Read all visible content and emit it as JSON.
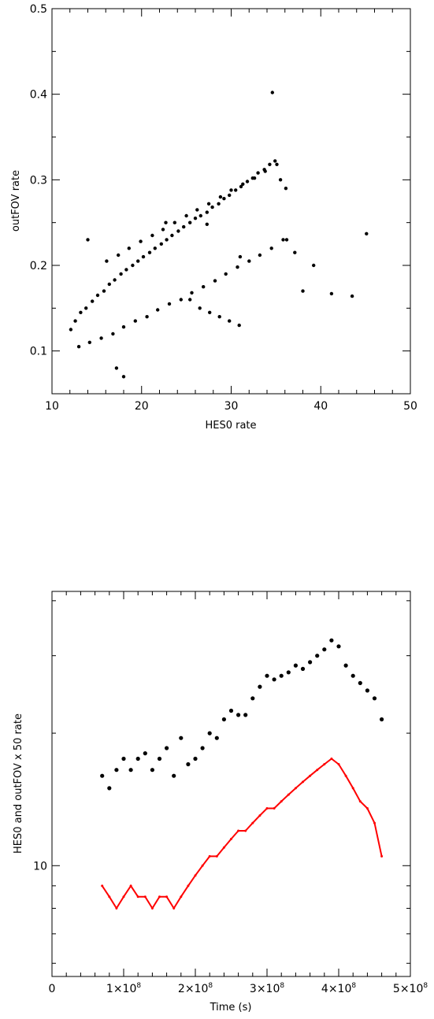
{
  "chart_data": [
    {
      "type": "scatter",
      "title": "",
      "xlabel": "HES0 rate",
      "ylabel": "outFOV rate",
      "xlim": [
        10,
        50
      ],
      "ylim": [
        0.05,
        0.5
      ],
      "x_ticks": [
        "10",
        "20",
        "30",
        "40",
        "50"
      ],
      "y_ticks": [
        "0.1",
        "0.2",
        "0.3",
        "0.4",
        "0.5"
      ],
      "series": [
        {
          "color": "#000000",
          "x": [
            12.1,
            12.6,
            13.2,
            13.8,
            14.5,
            15.1,
            15.8,
            16.4,
            17.0,
            17.7,
            18.3,
            19.0,
            19.6,
            20.2,
            20.9,
            21.5,
            22.2,
            22.8,
            23.4,
            24.1,
            24.7,
            25.4,
            26.0,
            26.6,
            27.3,
            27.9,
            28.6,
            29.2,
            29.8,
            30.5,
            31.1,
            31.8,
            32.4,
            33.0,
            33.7,
            34.3,
            34.9,
            35.5,
            36.1,
            13.0,
            14.2,
            15.5,
            16.8,
            18.0,
            19.3,
            20.6,
            21.8,
            23.1,
            24.4,
            25.6,
            26.9,
            28.2,
            29.4,
            30.7,
            32.0,
            33.2,
            34.5,
            35.8,
            16.1,
            17.4,
            18.6,
            19.9,
            21.2,
            22.4,
            23.7,
            25.0,
            26.2,
            27.5,
            28.8,
            30.0,
            31.3,
            32.6,
            33.8,
            35.1,
            25.4,
            26.5,
            27.6,
            28.7,
            29.8,
            30.9,
            36.2,
            37.1,
            38.0,
            39.2,
            41.2,
            43.5,
            45.1,
            18.0,
            17.2,
            34.6,
            14.0,
            22.7,
            27.3,
            31.0
          ],
          "y": [
            0.125,
            0.135,
            0.145,
            0.15,
            0.158,
            0.165,
            0.17,
            0.178,
            0.183,
            0.19,
            0.195,
            0.2,
            0.205,
            0.21,
            0.215,
            0.22,
            0.225,
            0.23,
            0.235,
            0.24,
            0.245,
            0.25,
            0.255,
            0.258,
            0.262,
            0.268,
            0.272,
            0.278,
            0.282,
            0.288,
            0.292,
            0.298,
            0.302,
            0.308,
            0.312,
            0.318,
            0.322,
            0.3,
            0.29,
            0.105,
            0.11,
            0.115,
            0.12,
            0.128,
            0.135,
            0.14,
            0.148,
            0.155,
            0.16,
            0.168,
            0.175,
            0.182,
            0.19,
            0.198,
            0.205,
            0.212,
            0.22,
            0.23,
            0.205,
            0.212,
            0.22,
            0.228,
            0.235,
            0.242,
            0.25,
            0.258,
            0.265,
            0.272,
            0.28,
            0.288,
            0.295,
            0.302,
            0.31,
            0.318,
            0.16,
            0.15,
            0.145,
            0.14,
            0.135,
            0.13,
            0.23,
            0.215,
            0.17,
            0.2,
            0.167,
            0.164,
            0.237,
            0.07,
            0.08,
            0.402,
            0.23,
            0.25,
            0.248,
            0.21
          ]
        }
      ]
    },
    {
      "type": "line",
      "title": "",
      "xlabel": "Time (s)",
      "ylabel": "HES0 and outFOV x 50 rate",
      "xlim": [
        0,
        500000000
      ],
      "ylim": [
        5.6,
        42
      ],
      "yscale": "log",
      "x_ticks": [
        {
          "mant": "0",
          "exp": ""
        },
        {
          "mant": "1×10",
          "exp": "8"
        },
        {
          "mant": "2×10",
          "exp": "8"
        },
        {
          "mant": "3×10",
          "exp": "8"
        },
        {
          "mant": "4×10",
          "exp": "8"
        },
        {
          "mant": "5×10",
          "exp": "8"
        }
      ],
      "y_ticks": [
        "10"
      ],
      "x": [
        70000000,
        80000000,
        90000000,
        100000000,
        110000000,
        120000000,
        130000000,
        140000000,
        150000000,
        160000000,
        170000000,
        180000000,
        190000000,
        200000000,
        210000000,
        220000000,
        230000000,
        240000000,
        250000000,
        260000000,
        270000000,
        280000000,
        290000000,
        300000000,
        310000000,
        320000000,
        330000000,
        340000000,
        350000000,
        360000000,
        370000000,
        380000000,
        390000000,
        400000000,
        410000000,
        420000000,
        430000000,
        440000000,
        450000000,
        460000000
      ],
      "series": [
        {
          "color": "#000000",
          "style": "points",
          "values": [
            16.0,
            15.0,
            16.5,
            17.5,
            16.5,
            17.5,
            18.0,
            16.5,
            17.5,
            18.5,
            16.0,
            19.5,
            17.0,
            17.5,
            18.5,
            20.0,
            19.5,
            21.5,
            22.5,
            22.0,
            22.0,
            24.0,
            25.5,
            27.0,
            26.5,
            27.0,
            27.5,
            28.5,
            28.0,
            29.0,
            30.0,
            31.0,
            32.5,
            31.5,
            28.5,
            27.0,
            26.0,
            25.0,
            24.0,
            21.5
          ]
        },
        {
          "color": "#ff0000",
          "style": "line",
          "values": [
            9.0,
            8.5,
            8.0,
            8.5,
            9.0,
            8.5,
            8.5,
            8.0,
            8.5,
            8.5,
            8.0,
            8.5,
            9.0,
            9.5,
            10.0,
            10.5,
            10.5,
            11.0,
            11.5,
            12.0,
            12.0,
            12.5,
            13.0,
            13.5,
            13.5,
            14.0,
            14.5,
            15.0,
            15.5,
            16.0,
            16.5,
            17.0,
            17.5,
            17.0,
            16.0,
            15.0,
            14.0,
            13.5,
            12.5,
            10.5
          ]
        }
      ]
    }
  ]
}
